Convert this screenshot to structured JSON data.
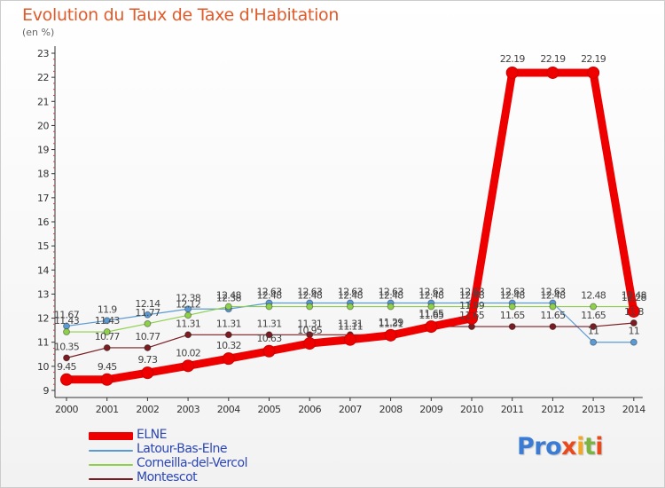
{
  "title": "Evolution du Taux de Taxe d'Habitation",
  "subtitle": "(en %)",
  "logo": {
    "parts": [
      {
        "text": "Pro",
        "color": "#3a7bd5"
      },
      {
        "text": "x",
        "color": "#e8491d"
      },
      {
        "text": "i",
        "color": "#f5a623"
      },
      {
        "text": "t",
        "color": "#7cb342"
      },
      {
        "text": "i",
        "color": "#e8491d"
      }
    ]
  },
  "chart_data": {
    "type": "line",
    "title": "Evolution du Taux de Taxe d'Habitation",
    "ylabel": "(en %)",
    "xlabel": "",
    "categories": [
      "2000",
      "2001",
      "2002",
      "2003",
      "2004",
      "2005",
      "2006",
      "2007",
      "2008",
      "2009",
      "2010",
      "2011",
      "2012",
      "2013",
      "2014"
    ],
    "ylim": [
      9,
      23
    ],
    "yticks": [
      "9",
      "10",
      "11",
      "12",
      "13",
      "14",
      "15",
      "16",
      "17",
      "18",
      "19",
      "20",
      "21",
      "22",
      "23"
    ],
    "grid": false,
    "legend": "bottom-left",
    "series": [
      {
        "name": "ELNE",
        "color": "#ee0000",
        "width": "thick",
        "values": [
          9.45,
          9.45,
          9.73,
          10.02,
          10.32,
          10.63,
          10.95,
          11.11,
          11.29,
          11.65,
          11.99,
          22.19,
          22.19,
          22.19,
          12.28
        ],
        "labels": [
          "9.45",
          "9.45",
          "9.73",
          "10.02",
          "10.32",
          "10.63",
          "10.95",
          "11.11",
          "11.29",
          "11.65",
          "11.99",
          "22.19",
          "22.19",
          "22.19",
          "12.28"
        ]
      },
      {
        "name": "Latour-Bas-Elne",
        "color": "#5b9bd5",
        "width": "thin",
        "values": [
          11.67,
          11.9,
          12.14,
          12.38,
          12.38,
          12.63,
          12.63,
          12.63,
          12.63,
          12.63,
          12.63,
          12.63,
          12.63,
          11.0,
          11.0
        ],
        "labels": [
          "11.67",
          "11.9",
          "12.14",
          "12.38",
          "12.38",
          "12.63",
          "12.63",
          "12.63",
          "12.63",
          "12.63",
          "12.63",
          "12.63",
          "12.63",
          "11",
          "11"
        ]
      },
      {
        "name": "Corneilla-del-Vercol",
        "color": "#8ed04a",
        "width": "thin",
        "values": [
          11.43,
          11.43,
          11.77,
          12.12,
          12.48,
          12.48,
          12.48,
          12.48,
          12.48,
          12.48,
          12.48,
          12.48,
          12.48,
          12.48,
          12.48
        ],
        "labels": [
          "11.43",
          "11.43",
          "11.77",
          "12.12",
          "12.48",
          "12.48",
          "12.48",
          "12.48",
          "12.48",
          "12.48",
          "12.48",
          "12.48",
          "12.48",
          "12.48",
          "12.48"
        ]
      },
      {
        "name": "Montescot",
        "color": "#7a1c22",
        "width": "thin",
        "values": [
          10.35,
          10.77,
          10.77,
          11.31,
          11.31,
          11.31,
          11.31,
          11.31,
          11.31,
          11.65,
          11.65,
          11.65,
          11.65,
          11.65,
          11.8
        ],
        "labels": [
          "10.35",
          "10.77",
          "10.77",
          "11.31",
          "11.31",
          "11.31",
          "11.31",
          "11.31",
          "11.31",
          "11.65",
          "11.65",
          "11.65",
          "11.65",
          "11.65",
          "11.8"
        ]
      }
    ]
  }
}
